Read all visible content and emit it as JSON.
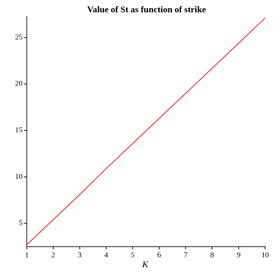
{
  "chart_data": {
    "type": "line",
    "title": "Value of St as function of strike",
    "x_label": "K",
    "x": [
      1,
      2,
      3,
      4,
      5,
      6,
      7,
      8,
      9,
      10
    ],
    "series": [
      {
        "color": "#ff0000",
        "values": [
          2.7,
          5.4,
          8.1,
          10.9,
          13.6,
          16.3,
          19.0,
          21.7,
          24.4,
          27.1
        ]
      }
    ],
    "xlim": [
      1,
      10
    ],
    "xticks": [
      1,
      2,
      3,
      4,
      5,
      6,
      7,
      8,
      9,
      10
    ],
    "ylim": [
      2.5,
      27.2
    ],
    "yticks": [
      5,
      10,
      15,
      20,
      25
    ]
  }
}
